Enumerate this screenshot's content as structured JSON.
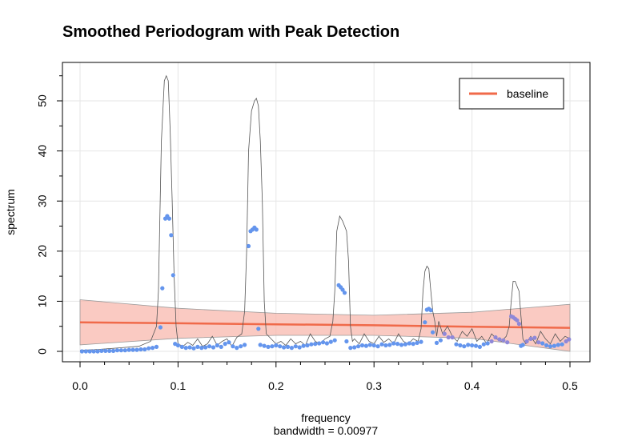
{
  "chart_data": {
    "type": "line",
    "title": "Smoothed Periodogram with Peak Detection",
    "xlabel": "frequency",
    "xlabel_sub": "bandwidth = 0.00977",
    "ylabel": "spectrum",
    "xlim": [
      0,
      0.5
    ],
    "ylim": [
      0,
      55
    ],
    "x_ticks": [
      "0.0",
      "0.1",
      "0.2",
      "0.3",
      "0.4",
      "0.5"
    ],
    "x_tick_values": [
      0,
      0.1,
      0.2,
      0.3,
      0.4,
      0.5
    ],
    "y_ticks": [
      "0",
      "10",
      "20",
      "30",
      "40",
      "50"
    ],
    "y_tick_values": [
      0,
      10,
      20,
      30,
      40,
      50
    ],
    "grid": true,
    "legend": {
      "position": "top-right",
      "entries": [
        "baseline"
      ]
    },
    "colors": {
      "spectrum": "#555555",
      "points": "#6495ed",
      "points_high": "#8f88d8",
      "baseline": "#f06a4a",
      "band": "#f8b8ad"
    },
    "spectrum": {
      "x": [
        0.0,
        0.02,
        0.04,
        0.06,
        0.072,
        0.078,
        0.08,
        0.083,
        0.086,
        0.088,
        0.09,
        0.092,
        0.094,
        0.096,
        0.098,
        0.1,
        0.105,
        0.11,
        0.115,
        0.12,
        0.125,
        0.13,
        0.135,
        0.14,
        0.145,
        0.15,
        0.155,
        0.16,
        0.165,
        0.168,
        0.17,
        0.172,
        0.175,
        0.178,
        0.18,
        0.182,
        0.184,
        0.186,
        0.188,
        0.19,
        0.195,
        0.2,
        0.205,
        0.21,
        0.215,
        0.22,
        0.225,
        0.23,
        0.235,
        0.24,
        0.245,
        0.25,
        0.255,
        0.258,
        0.26,
        0.262,
        0.265,
        0.268,
        0.27,
        0.272,
        0.274,
        0.276,
        0.278,
        0.28,
        0.285,
        0.29,
        0.295,
        0.3,
        0.305,
        0.31,
        0.315,
        0.32,
        0.325,
        0.33,
        0.335,
        0.34,
        0.345,
        0.348,
        0.35,
        0.352,
        0.354,
        0.356,
        0.358,
        0.36,
        0.362,
        0.364,
        0.366,
        0.37,
        0.375,
        0.38,
        0.385,
        0.39,
        0.395,
        0.4,
        0.405,
        0.41,
        0.415,
        0.42,
        0.425,
        0.43,
        0.435,
        0.438,
        0.44,
        0.442,
        0.444,
        0.446,
        0.448,
        0.45,
        0.452,
        0.455,
        0.46,
        0.465,
        0.47,
        0.475,
        0.48,
        0.485,
        0.49,
        0.495,
        0.5
      ],
      "y": [
        0.2,
        0.4,
        0.7,
        1.0,
        2.0,
        5.0,
        12.0,
        42.0,
        54.0,
        55.0,
        54.0,
        44.0,
        30.0,
        15.0,
        5.0,
        1.5,
        1.0,
        1.8,
        1.2,
        2.5,
        1.0,
        1.5,
        3.0,
        1.2,
        2.0,
        2.5,
        1.0,
        2.8,
        3.5,
        8.0,
        20.0,
        40.0,
        48.0,
        50.0,
        50.5,
        49.0,
        42.0,
        30.0,
        10.0,
        3.5,
        2.5,
        1.5,
        2.0,
        1.2,
        2.5,
        1.5,
        2.0,
        1.2,
        3.5,
        2.0,
        1.5,
        2.5,
        3.0,
        6.0,
        12.0,
        24.0,
        27.0,
        26.0,
        25.0,
        24.0,
        18.0,
        5.0,
        2.0,
        2.5,
        1.5,
        3.5,
        2.0,
        1.5,
        3.0,
        1.8,
        2.5,
        1.5,
        3.5,
        2.0,
        1.5,
        2.5,
        2.0,
        4.5,
        12.0,
        16.0,
        17.0,
        16.5,
        12.0,
        8.0,
        6.0,
        3.0,
        6.0,
        3.5,
        5.0,
        3.0,
        2.0,
        4.0,
        3.0,
        4.5,
        2.0,
        3.0,
        1.5,
        3.5,
        2.5,
        2.0,
        3.0,
        5.0,
        10.0,
        14.0,
        14.0,
        13.0,
        12.0,
        7.0,
        2.5,
        1.5,
        3.0,
        1.5,
        4.0,
        2.5,
        1.5,
        3.5,
        2.0,
        3.0,
        2.5
      ]
    },
    "baseline": {
      "x": [
        0.0,
        0.1,
        0.2,
        0.3,
        0.4,
        0.5
      ],
      "y": [
        5.8,
        5.6,
        5.4,
        5.2,
        4.9,
        4.7
      ],
      "lower": [
        1.3,
        2.6,
        3.2,
        3.2,
        2.6,
        0.0
      ],
      "upper": [
        10.3,
        8.6,
        7.6,
        7.2,
        7.8,
        9.4
      ]
    },
    "peak_points": {
      "x": [
        0.002,
        0.006,
        0.01,
        0.014,
        0.018,
        0.022,
        0.026,
        0.03,
        0.034,
        0.038,
        0.042,
        0.046,
        0.05,
        0.054,
        0.058,
        0.062,
        0.066,
        0.07,
        0.074,
        0.078,
        0.082,
        0.084,
        0.087,
        0.089,
        0.091,
        0.093,
        0.095,
        0.097,
        0.1,
        0.104,
        0.108,
        0.112,
        0.116,
        0.12,
        0.124,
        0.128,
        0.132,
        0.136,
        0.14,
        0.144,
        0.148,
        0.152,
        0.156,
        0.16,
        0.164,
        0.168,
        0.172,
        0.174,
        0.176,
        0.178,
        0.18,
        0.182,
        0.184,
        0.188,
        0.192,
        0.196,
        0.2,
        0.204,
        0.208,
        0.212,
        0.216,
        0.22,
        0.224,
        0.228,
        0.232,
        0.236,
        0.24,
        0.244,
        0.248,
        0.252,
        0.256,
        0.26,
        0.264,
        0.266,
        0.268,
        0.27,
        0.272,
        0.276,
        0.28,
        0.284,
        0.288,
        0.292,
        0.296,
        0.3,
        0.304,
        0.308,
        0.312,
        0.316,
        0.32,
        0.324,
        0.328,
        0.332,
        0.336,
        0.34,
        0.344,
        0.348,
        0.352,
        0.354,
        0.356,
        0.358,
        0.36,
        0.364,
        0.368,
        0.372,
        0.376,
        0.38,
        0.384,
        0.388,
        0.392,
        0.396,
        0.4,
        0.404,
        0.408,
        0.412,
        0.416,
        0.42,
        0.424,
        0.428,
        0.432,
        0.436,
        0.44,
        0.442,
        0.444,
        0.446,
        0.448,
        0.45,
        0.452,
        0.456,
        0.46,
        0.464,
        0.468,
        0.472,
        0.476,
        0.48,
        0.484,
        0.488,
        0.492,
        0.496,
        0.499
      ],
      "y": [
        0.0,
        0.0,
        0.0,
        0.0,
        0.0,
        0.1,
        0.1,
        0.1,
        0.1,
        0.2,
        0.2,
        0.2,
        0.3,
        0.3,
        0.3,
        0.4,
        0.4,
        0.6,
        0.7,
        0.9,
        4.8,
        12.6,
        26.5,
        27.0,
        26.5,
        23.2,
        15.2,
        1.5,
        1.2,
        0.9,
        0.7,
        0.8,
        0.6,
        0.9,
        0.7,
        0.8,
        1.0,
        0.8,
        1.2,
        0.9,
        1.5,
        1.8,
        1.0,
        0.7,
        1.0,
        1.3,
        21.0,
        24.0,
        24.3,
        24.7,
        24.3,
        4.5,
        1.3,
        1.1,
        0.9,
        1.0,
        1.2,
        1.0,
        0.8,
        0.9,
        0.7,
        1.0,
        0.8,
        1.1,
        1.2,
        1.4,
        1.5,
        1.6,
        1.8,
        1.6,
        1.9,
        2.2,
        13.2,
        12.8,
        12.3,
        11.7,
        2.0,
        0.7,
        0.8,
        1.0,
        1.2,
        1.1,
        1.3,
        1.2,
        1.0,
        1.4,
        1.2,
        1.3,
        1.6,
        1.5,
        1.3,
        1.4,
        1.6,
        1.5,
        1.7,
        1.9,
        5.8,
        8.3,
        8.5,
        8.2,
        3.8,
        1.7,
        2.2,
        3.5,
        2.8,
        2.8,
        1.4,
        1.2,
        1.0,
        1.3,
        1.2,
        1.1,
        0.9,
        1.4,
        1.6,
        2.0,
        2.8,
        2.4,
        2.2,
        1.8,
        7.0,
        6.8,
        6.5,
        6.2,
        5.5,
        1.1,
        1.3,
        2.0,
        2.5,
        2.7,
        1.8,
        1.6,
        1.2,
        1.0,
        1.1,
        1.3,
        1.4,
        2.0,
        2.4
      ]
    }
  }
}
